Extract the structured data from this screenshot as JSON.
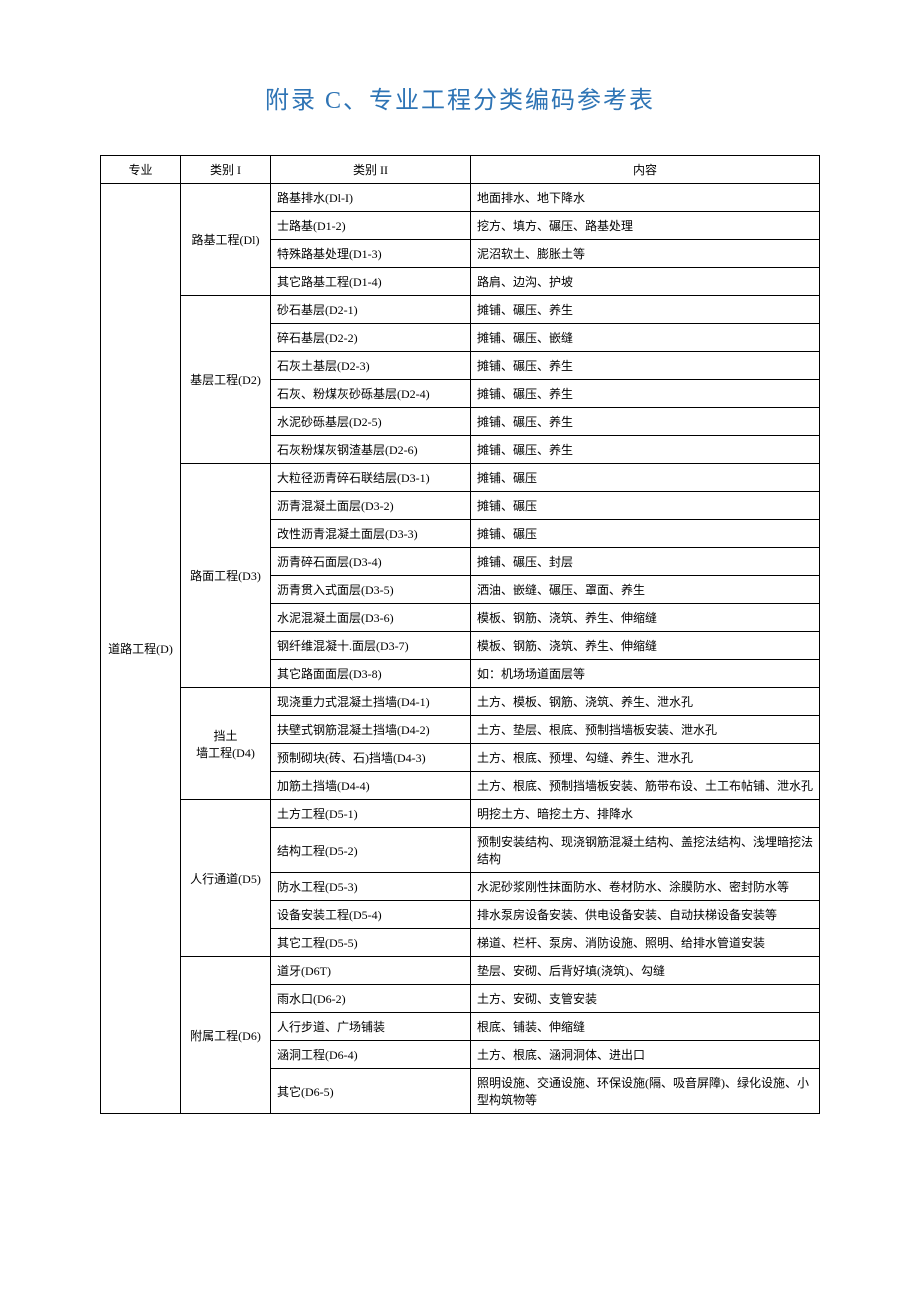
{
  "title": "附录 C、专业工程分类编码参考表",
  "headers": {
    "col1": "专业",
    "col2": "类别 I",
    "col3": "类别 II",
    "col4": "内容"
  },
  "major": "道路工程(D)",
  "groups": [
    {
      "cat1": "路基工程(Dl)",
      "rows": [
        {
          "cat2": "路基排水(Dl-I)",
          "content": "地面排水、地下降水"
        },
        {
          "cat2": "士路基(D1-2)",
          "content": "挖方、填方、碾压、路基处理"
        },
        {
          "cat2": "特殊路基处理(D1-3)",
          "content": "泥沼软土、膨胀土等"
        },
        {
          "cat2": "其它路基工程(D1-4)",
          "content": "路肩、边沟、护坡"
        }
      ]
    },
    {
      "cat1": "基层工程(D2)",
      "rows": [
        {
          "cat2": "砂石基层(D2-1)",
          "content": "摊铺、碾压、养生"
        },
        {
          "cat2": "碎石基层(D2-2)",
          "content": "摊铺、碾压、嵌缝"
        },
        {
          "cat2": "石灰土基层(D2-3)",
          "content": "摊铺、碾压、养生"
        },
        {
          "cat2": "石灰、粉煤灰砂砾基层(D2-4)",
          "content": "摊铺、碾压、养生"
        },
        {
          "cat2": "水泥砂砾基层(D2-5)",
          "content": "摊铺、碾压、养生"
        },
        {
          "cat2": "石灰粉煤灰钢渣基层(D2-6)",
          "content": "摊铺、碾压、养生"
        }
      ]
    },
    {
      "cat1": "路面工程(D3)",
      "rows": [
        {
          "cat2": "大粒径沥青碎石联结层(D3-1)",
          "content": "摊铺、碾压"
        },
        {
          "cat2": "沥青混凝土面层(D3-2)",
          "content": "摊铺、碾压"
        },
        {
          "cat2": "改性沥青混凝土面层(D3-3)",
          "content": "摊铺、碾压"
        },
        {
          "cat2": "沥青碎石面层(D3-4)",
          "content": "摊铺、碾压、封层"
        },
        {
          "cat2": "沥青贯入式面层(D3-5)",
          "content": "洒油、嵌缝、碾压、罩面、养生"
        },
        {
          "cat2": "水泥混凝土面层(D3-6)",
          "content": "模板、钢筋、浇筑、养生、伸缩缝"
        },
        {
          "cat2": "钢纤维混凝十.面层(D3-7)",
          "content": "模板、钢筋、浇筑、养生、伸缩缝"
        },
        {
          "cat2": "其它路面面层(D3-8)",
          "content": "如：机场场道面层等"
        }
      ]
    },
    {
      "cat1": "挡土\n墙工程(D4)",
      "rows": [
        {
          "cat2": "现浇重力式混凝土挡墙(D4-1)",
          "content": "土方、模板、钢筋、浇筑、养生、泄水孔"
        },
        {
          "cat2": "扶壁式钢筋混凝土挡墙(D4-2)",
          "content": "土方、垫层、根底、预制挡墙板安装、泄水孔"
        },
        {
          "cat2": "预制砌块(砖、石)挡墙(D4-3)",
          "content": "土方、根底、预埋、勾缝、养生、泄水孔"
        },
        {
          "cat2": "加筋土挡墙(D4-4)",
          "content": "土方、根底、预制挡墙板安装、筋带布设、土工布帖铺、泄水孔"
        }
      ]
    },
    {
      "cat1": "人行通道(D5)",
      "rows": [
        {
          "cat2": "土方工程(D5-1)",
          "content": "明挖土方、暗挖土方、排降水"
        },
        {
          "cat2": "结构工程(D5-2)",
          "content": "预制安装结构、现浇钢筋混凝土结构、盖挖法结构、浅埋暗挖法结构"
        },
        {
          "cat2": "防水工程(D5-3)",
          "content": "水泥砂浆刚性抹面防水、卷材防水、涂膜防水、密封防水等"
        },
        {
          "cat2": "设备安装工程(D5-4)",
          "content": "排水泵房设备安装、供电设备安装、自动扶梯设备安装等"
        },
        {
          "cat2": "其它工程(D5-5)",
          "content": "梯道、栏杆、泵房、消防设施、照明、给排水管道安装"
        }
      ]
    },
    {
      "cat1": "附属工程(D6)",
      "rows": [
        {
          "cat2": "道牙(D6T)",
          "content": "垫层、安砌、后背好填(浇筑)、勾缝"
        },
        {
          "cat2": "雨水口(D6-2)",
          "content": "土方、安砌、支管安装"
        },
        {
          "cat2": "人行步道、广场铺装",
          "content": "根底、铺装、伸缩缝"
        },
        {
          "cat2": "涵洞工程(D6-4)",
          "content": "土方、根底、涵洞洞体、进出口"
        },
        {
          "cat2": "其它(D6-5)",
          "content": "照明设施、交通设施、环保设施(隔、吸音屏障)、绿化设施、小型构筑物等"
        }
      ]
    }
  ]
}
